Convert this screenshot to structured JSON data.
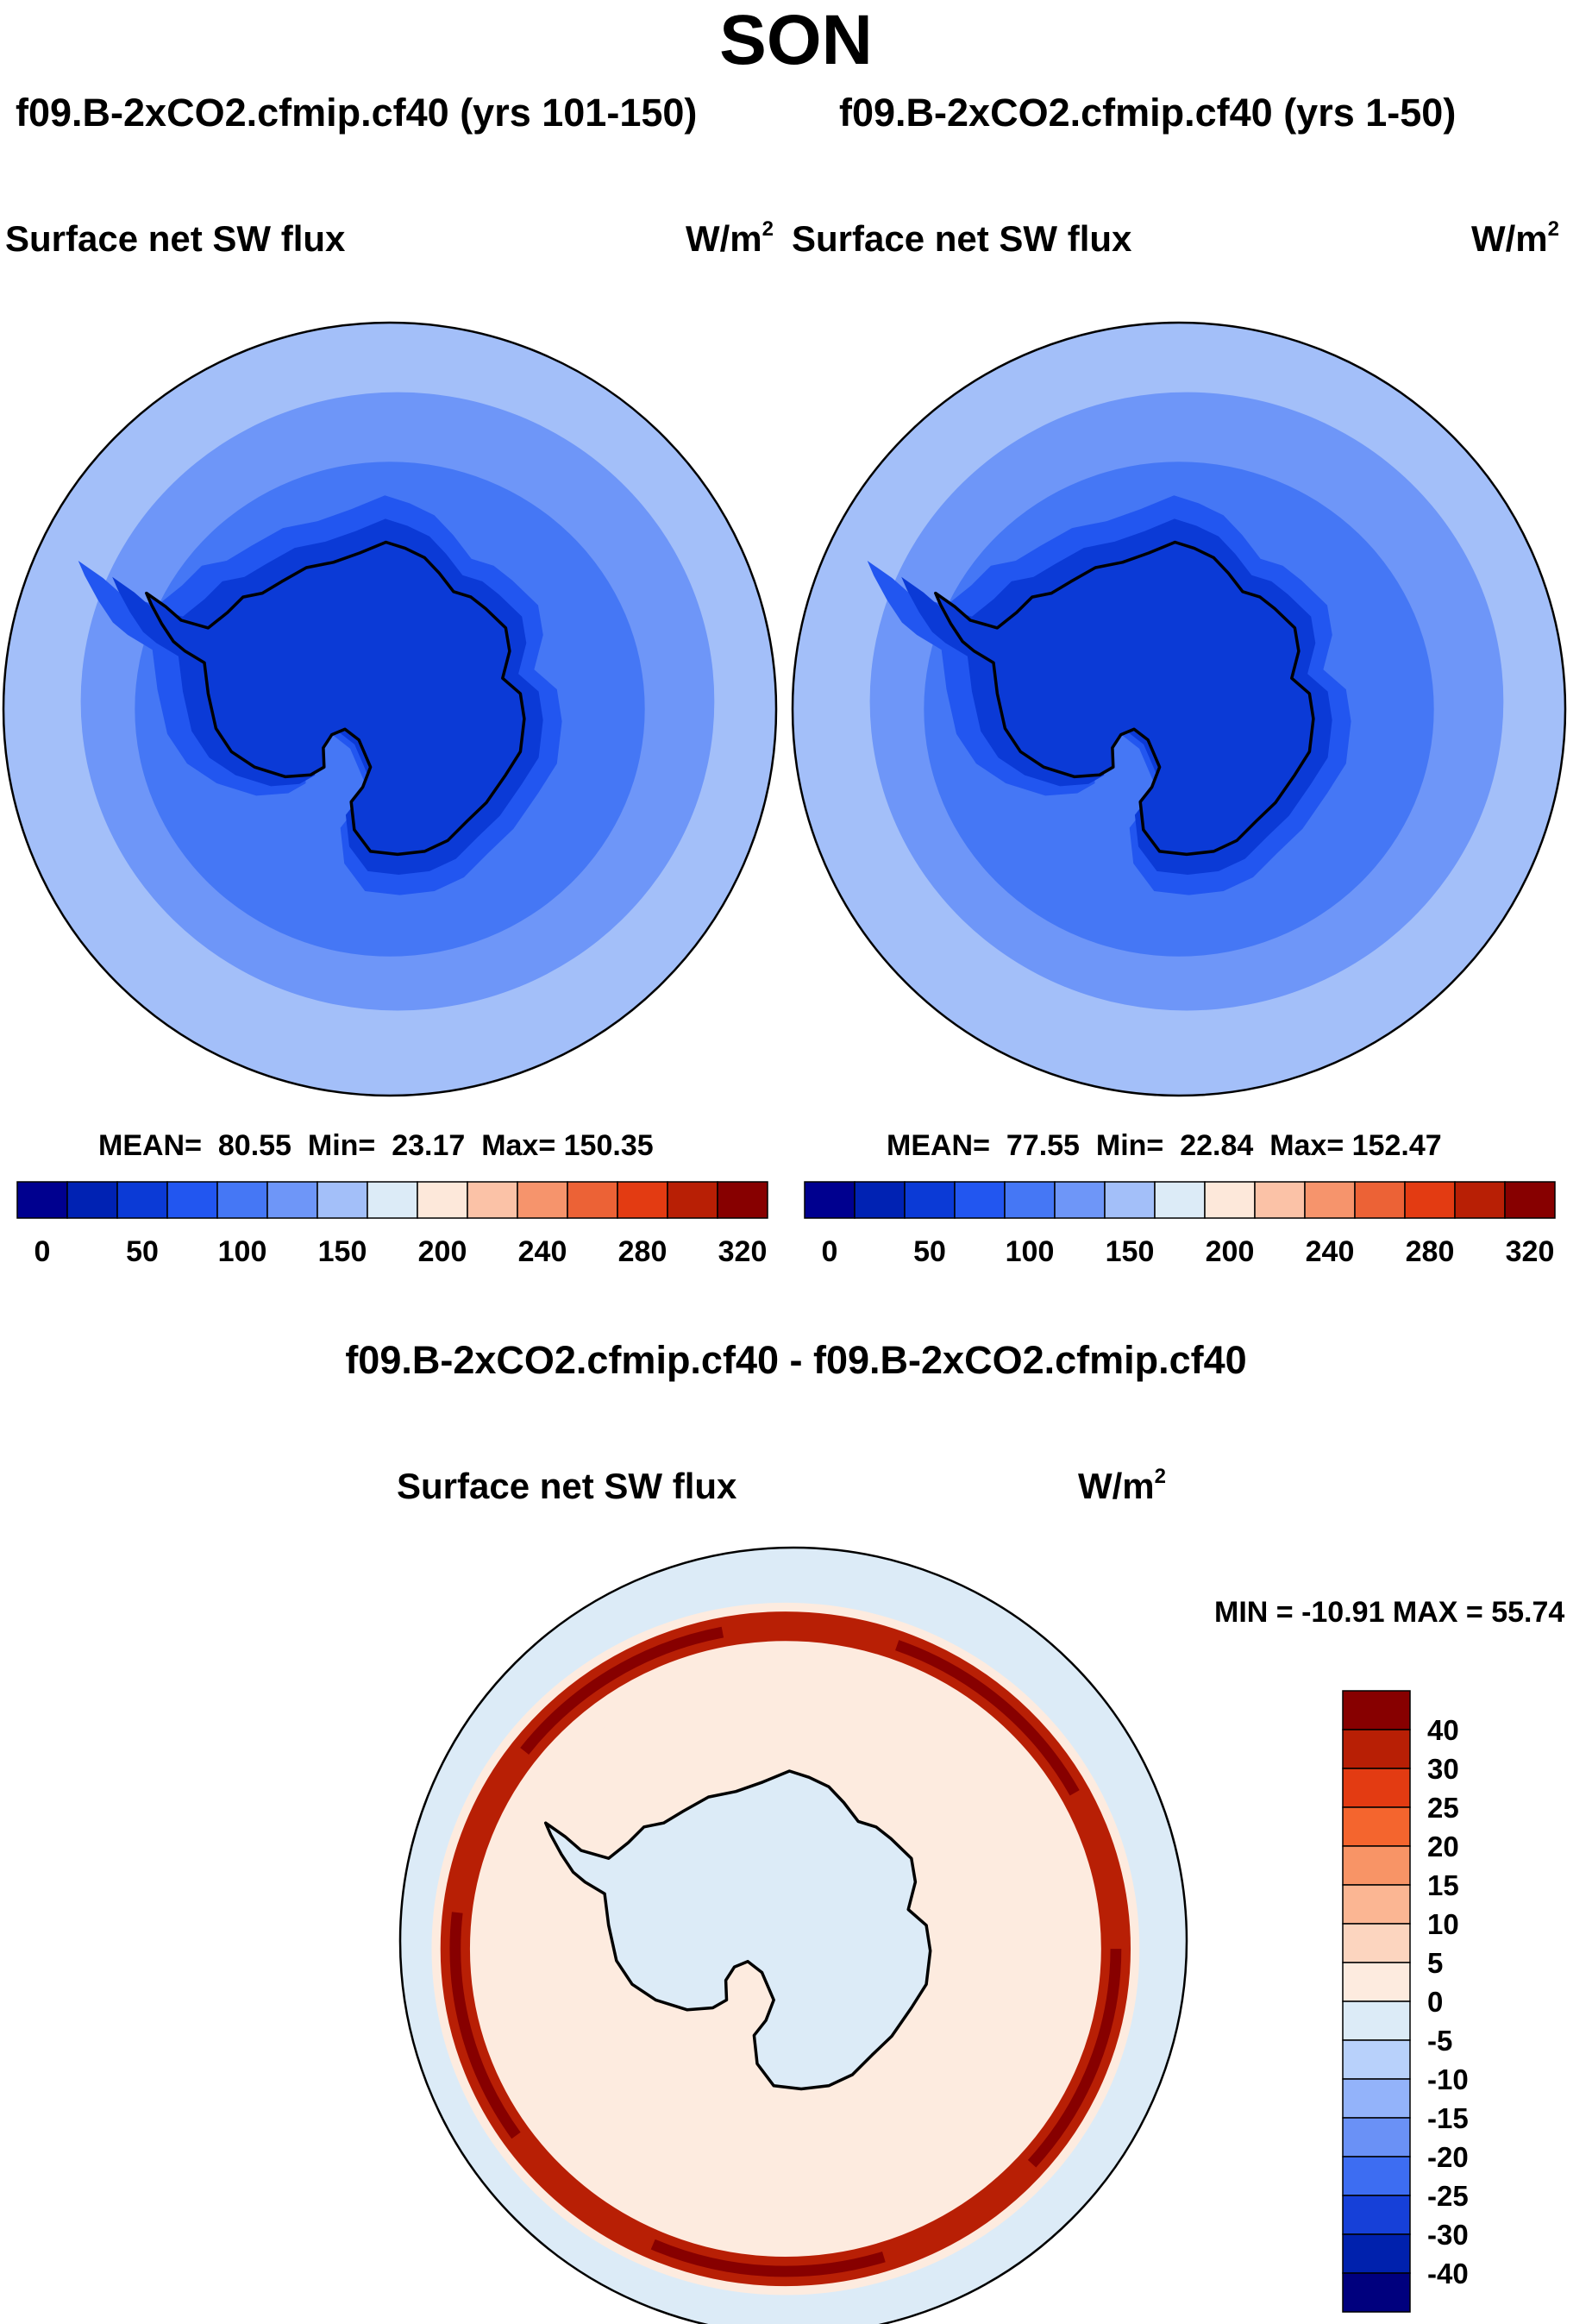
{
  "figure": {
    "season": "SON",
    "variable": "Surface net SW flux",
    "units_base": "W/m",
    "units_exp": "2",
    "colors": {
      "land_outline": "#000000",
      "background": "#ffffff"
    }
  },
  "chart_data": [
    {
      "type": "heatmap",
      "projection": "south polar stereographic",
      "title": "f09.B-2xCO2.cfmip.cf40 (yrs 101-150)",
      "variable": "Surface net SW flux",
      "units": "W/m2",
      "stats": {
        "mean_label": "MEAN=",
        "mean": "80.55",
        "min_label": "Min=",
        "min": "23.17",
        "max_label": "Max=",
        "max": "150.35"
      },
      "colorbar": {
        "orientation": "horizontal",
        "tick_labels": [
          "0",
          "50",
          "100",
          "150",
          "200",
          "240",
          "280",
          "320"
        ],
        "colors": [
          "#00008f",
          "#0022b3",
          "#0b3ad6",
          "#2256f0",
          "#4577f5",
          "#6e96f8",
          "#a3bff9",
          "#dcebf7",
          "#fde8da",
          "#fbc2a7",
          "#f6946c",
          "#ec6236",
          "#e33b12",
          "#b81f05",
          "#870000"
        ]
      },
      "field_levels": {
        "land": 25,
        "coastal_ring": 60,
        "inner_ocean": 90,
        "mid_ocean": 110,
        "outer_ocean": 135
      }
    },
    {
      "type": "heatmap",
      "projection": "south polar stereographic",
      "title": "f09.B-2xCO2.cfmip.cf40 (yrs 1-50)",
      "variable": "Surface net SW flux",
      "units": "W/m2",
      "stats": {
        "mean_label": "MEAN=",
        "mean": "77.55",
        "min_label": "Min=",
        "min": "22.84",
        "max_label": "Max=",
        "max": "152.47"
      },
      "colorbar": {
        "orientation": "horizontal",
        "tick_labels": [
          "0",
          "50",
          "100",
          "150",
          "200",
          "240",
          "280",
          "320"
        ],
        "colors": [
          "#00008f",
          "#0022b3",
          "#0b3ad6",
          "#2256f0",
          "#4577f5",
          "#6e96f8",
          "#a3bff9",
          "#dcebf7",
          "#fde8da",
          "#fbc2a7",
          "#f6946c",
          "#ec6236",
          "#e33b12",
          "#b81f05",
          "#870000"
        ]
      },
      "field_levels": {
        "land": 25,
        "coastal_ring": 60,
        "inner_ocean": 90,
        "mid_ocean": 110,
        "outer_ocean": 135
      }
    },
    {
      "type": "heatmap",
      "projection": "south polar stereographic",
      "title": "f09.B-2xCO2.cfmip.cf40 - f09.B-2xCO2.cfmip.cf40",
      "variable": "Surface net SW flux",
      "units": "W/m2",
      "stats": {
        "text": "MIN = -10.91 MAX =  55.74",
        "min": -10.91,
        "max": 55.74
      },
      "colorbar": {
        "orientation": "vertical",
        "tick_labels": [
          "40",
          "30",
          "25",
          "20",
          "15",
          "10",
          "5",
          "0",
          "-5",
          "-10",
          "-15",
          "-20",
          "-25",
          "-30",
          "-40"
        ],
        "colors": [
          "#870000",
          "#b81f05",
          "#e33b12",
          "#f4652e",
          "#f89466",
          "#fbb693",
          "#fcd5bf",
          "#fdebdf",
          "#dcebf7",
          "#b8d1fb",
          "#93b3fa",
          "#6a91f6",
          "#3d6df2",
          "#1640d8",
          "#0021ad",
          "#00007e"
        ]
      },
      "field_levels": {
        "background": -3,
        "land": -2,
        "sea_ice_edge_band": 35,
        "band_peak": 50,
        "outer_ring": 3
      }
    }
  ]
}
